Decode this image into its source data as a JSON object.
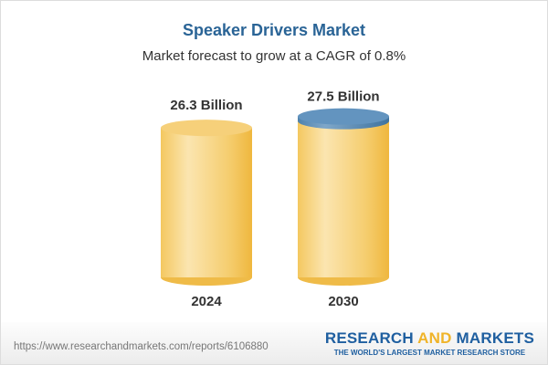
{
  "chart_data": {
    "type": "bar",
    "title": "Speaker Drivers Market",
    "subtitle": "Market forecast to grow at a CAGR of 0.8%",
    "categories": [
      "2024",
      "2030"
    ],
    "values": [
      26.3,
      27.5
    ],
    "data_labels": [
      "26.3 Billion",
      "27.5 Billion"
    ],
    "unit": "Billion",
    "colors": {
      "body": "#f3c453",
      "highlight": "#fbe6b4",
      "top": "#f6d07a",
      "cap": "#5b8db8"
    }
  },
  "footer": {
    "url": "https://www.researchandmarkets.com/reports/6106880",
    "logo_part1": "RESEARCH ",
    "logo_part2": "AND",
    "logo_part3": " MARKETS",
    "tagline": "THE WORLD'S LARGEST MARKET RESEARCH STORE"
  }
}
